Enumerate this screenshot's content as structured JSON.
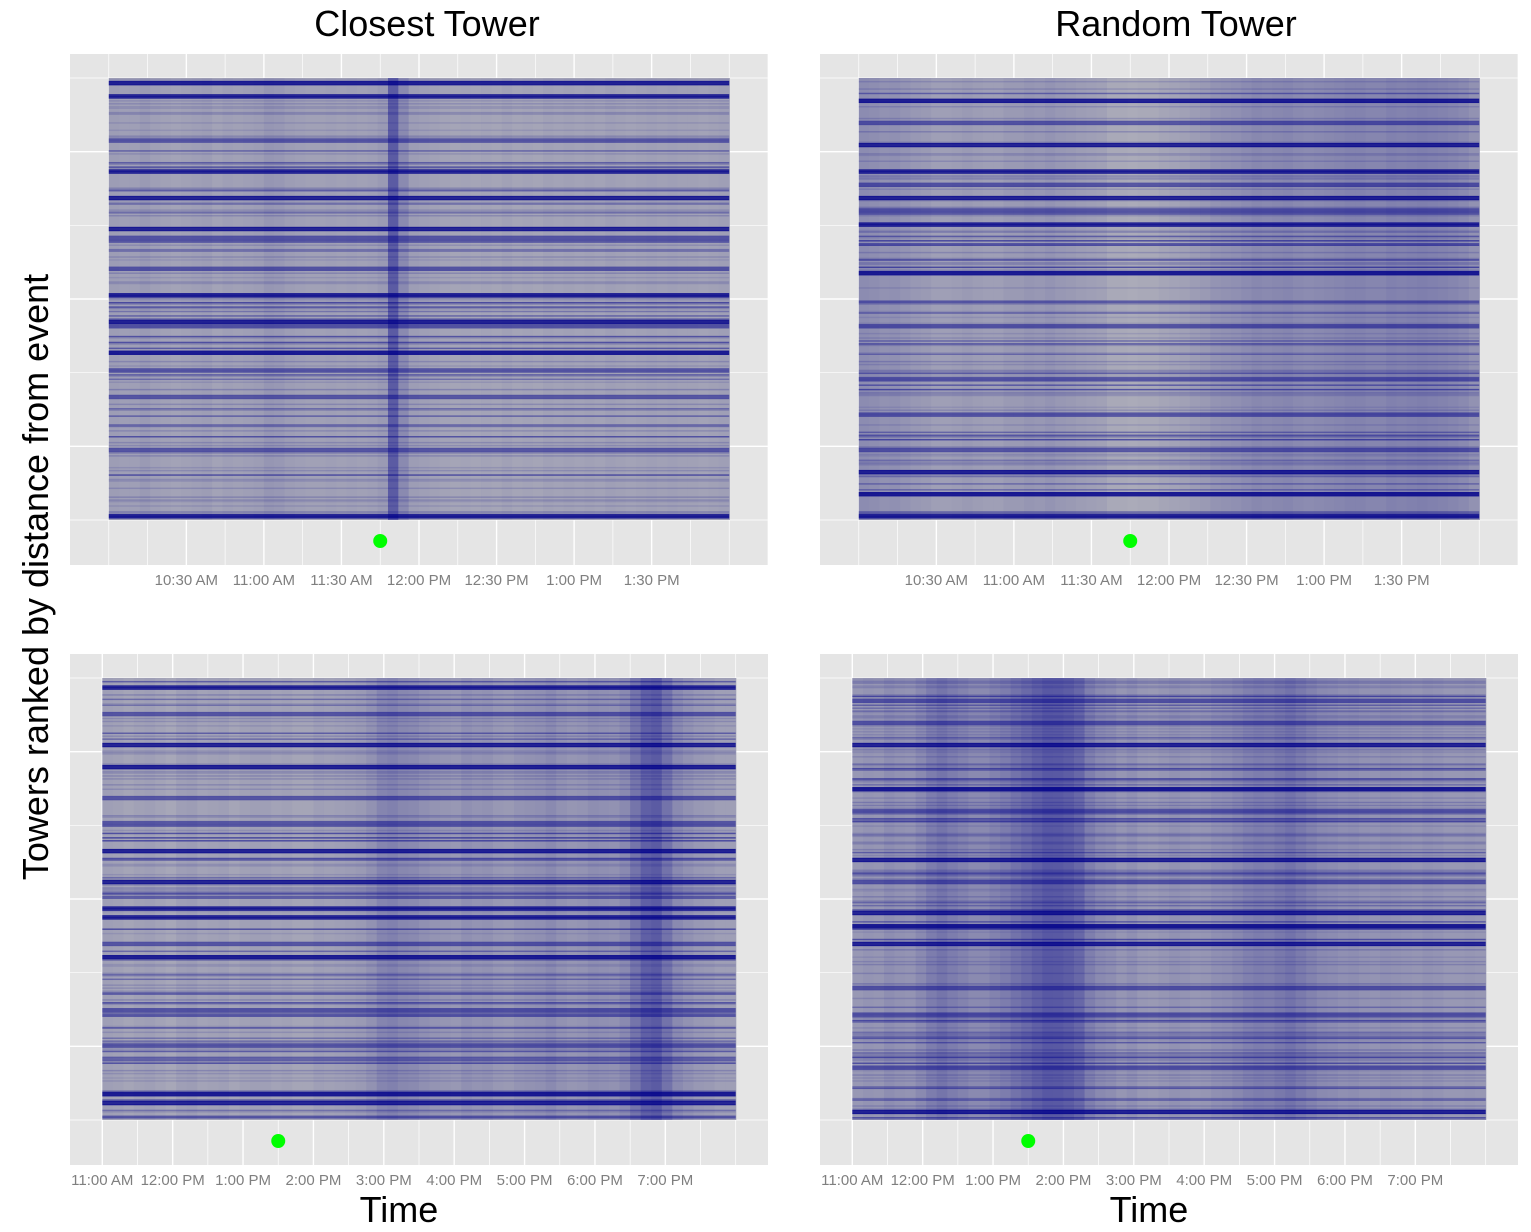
{
  "figure": {
    "ylabel": "Towers ranked by distance from event",
    "column_titles": [
      "Closest Tower",
      "Random Tower"
    ]
  },
  "colors": {
    "panel_background": "#e5e5e5",
    "grid": "#ffffff",
    "heat_low": "#bebebe",
    "heat_high": "#00008b",
    "event_marker": "#00ff00",
    "tick_text": "#7f7f7f"
  },
  "chart_data": [
    {
      "id": "top-left",
      "type": "heatmap",
      "column_title": "Closest Tower",
      "xlabel": "",
      "ylabel": "Towers ranked by distance from event",
      "x_unit": "minutes",
      "x_range": [
        "10:00 AM",
        "2:00 PM"
      ],
      "xlim": [
        "9:45 AM",
        "2:15 PM"
      ],
      "x_ticks": [
        "10:30 AM",
        "11:00 AM",
        "11:30 AM",
        "12:00 PM",
        "12:30 PM",
        "1:00 PM",
        "1:30 PM"
      ],
      "y_tick_labels": [],
      "event_time": "11:45 AM",
      "color_scale": [
        "#bebebe",
        "#00008b"
      ],
      "grid": true,
      "legend": "none",
      "n_columns": 60,
      "n_rows": 300,
      "column_intensity": [
        0.32,
        0.3,
        0.3,
        0.34,
        0.3,
        0.28,
        0.26,
        0.28,
        0.3,
        0.32,
        0.26,
        0.3,
        0.28,
        0.3,
        0.32,
        0.38,
        0.36,
        0.32,
        0.3,
        0.28,
        0.28,
        0.3,
        0.28,
        0.3,
        0.28,
        0.3,
        0.34,
        0.95,
        0.5,
        0.32,
        0.3,
        0.28,
        0.26,
        0.24,
        0.26,
        0.24,
        0.26,
        0.24,
        0.28,
        0.24,
        0.26,
        0.24,
        0.28,
        0.26,
        0.28,
        0.26,
        0.28,
        0.26,
        0.3,
        0.28,
        0.26,
        0.28,
        0.3,
        0.28,
        0.3,
        0.28,
        0.28,
        0.26,
        0.28,
        0.3
      ],
      "strong_row_bands": [
        0.01,
        0.04,
        0.21,
        0.27,
        0.34,
        0.49,
        0.55,
        0.62,
        0.99
      ],
      "medium_row_bands": [
        0.14,
        0.36,
        0.43,
        0.56,
        0.66,
        0.72,
        0.84
      ]
    },
    {
      "id": "top-right",
      "type": "heatmap",
      "column_title": "Random Tower",
      "xlabel": "",
      "x_unit": "minutes",
      "x_range": [
        "10:00 AM",
        "2:00 PM"
      ],
      "xlim": [
        "9:45 AM",
        "2:15 PM"
      ],
      "x_ticks": [
        "10:30 AM",
        "11:00 AM",
        "11:30 AM",
        "12:00 PM",
        "12:30 PM",
        "1:00 PM",
        "1:30 PM"
      ],
      "y_tick_labels": [],
      "event_time": "11:45 AM",
      "color_scale": [
        "#bebebe",
        "#00008b"
      ],
      "grid": true,
      "legend": "none",
      "n_columns": 60,
      "n_rows": 300,
      "column_intensity": [
        0.48,
        0.46,
        0.42,
        0.44,
        0.4,
        0.36,
        0.34,
        0.3,
        0.3,
        0.32,
        0.34,
        0.32,
        0.3,
        0.3,
        0.34,
        0.34,
        0.38,
        0.36,
        0.4,
        0.36,
        0.34,
        0.32,
        0.3,
        0.28,
        0.2,
        0.2,
        0.18,
        0.2,
        0.2,
        0.24,
        0.26,
        0.28,
        0.32,
        0.34,
        0.4,
        0.42,
        0.44,
        0.48,
        0.52,
        0.5,
        0.52,
        0.54,
        0.5,
        0.48,
        0.5,
        0.52,
        0.54,
        0.56,
        0.56,
        0.54,
        0.54,
        0.58,
        0.56,
        0.58,
        0.6,
        0.58,
        0.56,
        0.54,
        0.5,
        0.42
      ],
      "strong_row_bands": [
        0.05,
        0.15,
        0.21,
        0.27,
        0.33,
        0.44,
        0.89,
        0.94,
        0.99
      ],
      "medium_row_bands": [
        0.1,
        0.24,
        0.3,
        0.56,
        0.68,
        0.76,
        0.84
      ]
    },
    {
      "id": "bottom-left",
      "type": "heatmap",
      "column_title": "Closest Tower",
      "xlabel": "Time",
      "x_unit": "hours",
      "x_range": [
        "11:00 AM",
        "8:00 PM"
      ],
      "xlim": [
        "11:00 AM",
        "8:00 PM"
      ],
      "x_ticks": [
        "11:00 AM",
        "12:00 PM",
        "1:00 PM",
        "2:00 PM",
        "3:00 PM",
        "4:00 PM",
        "5:00 PM",
        "6:00 PM",
        "7:00 PM"
      ],
      "y_tick_labels": [],
      "event_time": "1:30 PM",
      "color_scale": [
        "#bebebe",
        "#00008b"
      ],
      "grid": true,
      "legend": "none",
      "n_columns": 60,
      "n_rows": 300,
      "column_intensity": [
        0.3,
        0.28,
        0.24,
        0.28,
        0.3,
        0.26,
        0.22,
        0.3,
        0.32,
        0.26,
        0.28,
        0.3,
        0.24,
        0.28,
        0.3,
        0.3,
        0.26,
        0.28,
        0.24,
        0.24,
        0.3,
        0.28,
        0.3,
        0.32,
        0.34,
        0.42,
        0.55,
        0.58,
        0.52,
        0.5,
        0.44,
        0.4,
        0.38,
        0.36,
        0.44,
        0.4,
        0.42,
        0.36,
        0.34,
        0.4,
        0.42,
        0.44,
        0.5,
        0.42,
        0.38,
        0.4,
        0.46,
        0.44,
        0.42,
        0.5,
        0.7,
        0.9,
        0.95,
        0.72,
        0.5,
        0.42,
        0.36,
        0.34,
        0.3,
        0.3
      ],
      "strong_row_bands": [
        0.02,
        0.15,
        0.2,
        0.39,
        0.46,
        0.52,
        0.54,
        0.63,
        0.94,
        0.96
      ],
      "medium_row_bands": [
        0.08,
        0.27,
        0.33,
        0.6,
        0.75,
        0.83
      ]
    },
    {
      "id": "bottom-right",
      "type": "heatmap",
      "column_title": "Random Tower",
      "xlabel": "Time",
      "x_unit": "hours",
      "x_range": [
        "11:00 AM",
        "8:00 PM"
      ],
      "xlim": [
        "11:00 AM",
        "8:00 PM"
      ],
      "x_ticks": [
        "11:00 AM",
        "12:00 PM",
        "1:00 PM",
        "2:00 PM",
        "3:00 PM",
        "4:00 PM",
        "5:00 PM",
        "6:00 PM",
        "7:00 PM"
      ],
      "y_tick_labels": [],
      "event_time": "1:30 PM",
      "color_scale": [
        "#bebebe",
        "#00008b"
      ],
      "grid": true,
      "legend": "none",
      "n_columns": 60,
      "n_rows": 300,
      "column_intensity": [
        0.36,
        0.4,
        0.38,
        0.46,
        0.42,
        0.4,
        0.5,
        0.62,
        0.7,
        0.62,
        0.56,
        0.5,
        0.5,
        0.56,
        0.62,
        0.72,
        0.8,
        0.9,
        0.98,
        0.97,
        0.92,
        0.82,
        0.6,
        0.5,
        0.46,
        0.38,
        0.44,
        0.36,
        0.34,
        0.38,
        0.42,
        0.4,
        0.36,
        0.38,
        0.44,
        0.46,
        0.52,
        0.58,
        0.62,
        0.6,
        0.66,
        0.72,
        0.64,
        0.56,
        0.5,
        0.48,
        0.44,
        0.46,
        0.42,
        0.4,
        0.44,
        0.42,
        0.4,
        0.38,
        0.42,
        0.4,
        0.36,
        0.36,
        0.38,
        0.36
      ],
      "strong_row_bands": [
        0.15,
        0.25,
        0.41,
        0.53,
        0.56,
        0.6,
        0.98
      ],
      "medium_row_bands": [
        0.05,
        0.1,
        0.3,
        0.46,
        0.7,
        0.76,
        0.88
      ]
    }
  ]
}
